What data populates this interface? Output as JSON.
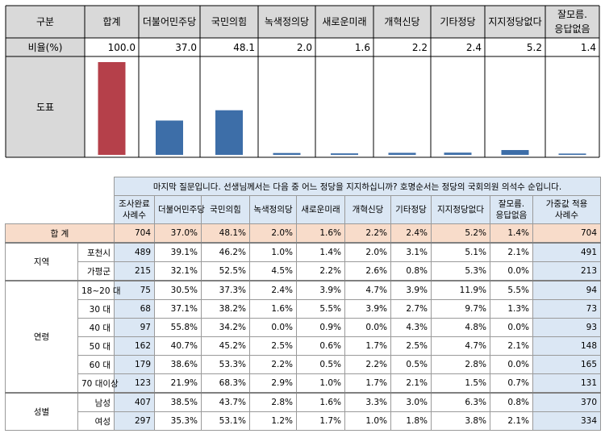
{
  "top_table": {
    "header_label": "구분",
    "rate_label": "비율(%)",
    "chart_label": "도표",
    "columns": [
      "합계",
      "더불어민주당",
      "국민의힘",
      "녹색정의당",
      "새로운미래",
      "개혁신당",
      "기타정당",
      "지지정당없다",
      "잘모름.\n응답없음"
    ],
    "rates": [
      "100.0",
      "37.0",
      "48.1",
      "2.0",
      "1.6",
      "2.2",
      "2.4",
      "5.2",
      "1.4"
    ]
  },
  "chart_data": {
    "type": "bar",
    "categories": [
      "합계",
      "더불어민주당",
      "국민의힘",
      "녹색정의당",
      "새로운미래",
      "개혁신당",
      "기타정당",
      "지지정당없다",
      "잘모름.\n응답없음"
    ],
    "values": [
      100.0,
      37.0,
      48.1,
      2.0,
      1.6,
      2.2,
      2.4,
      5.2,
      1.4
    ],
    "ylim": [
      0,
      100
    ],
    "colors": [
      "#b5404a",
      "#3d6ea8",
      "#3d6ea8",
      "#3d6ea8",
      "#3d6ea8",
      "#3d6ea8",
      "#3d6ea8",
      "#3d6ea8",
      "#3d6ea8"
    ],
    "title": "",
    "xlabel": "",
    "ylabel": ""
  },
  "survey": {
    "question": "마지막 질문입니다. 선생님께서는 다음 중 어느 정당을 지지하십니까? 호명순서는 정당의 국회의원 의석수 순입니다.",
    "headers": [
      "조사완료\n사례수",
      "더불어민주당",
      "국민의힘",
      "녹색정의당",
      "새로운미래",
      "개혁신당",
      "기타정당",
      "지지정당없다",
      "잘모름.\n응답없음",
      "가중값 적용\n사례수"
    ],
    "total": {
      "label": "합 계",
      "values": [
        "704",
        "37.0%",
        "48.1%",
        "2.0%",
        "1.6%",
        "2.2%",
        "2.4%",
        "5.2%",
        "1.4%",
        "704"
      ]
    },
    "groups": [
      {
        "name": "지역",
        "rows": [
          {
            "label": "포천시",
            "values": [
              "489",
              "39.1%",
              "46.2%",
              "1.0%",
              "1.4%",
              "2.0%",
              "3.1%",
              "5.1%",
              "2.1%",
              "491"
            ]
          },
          {
            "label": "가평군",
            "values": [
              "215",
              "32.1%",
              "52.5%",
              "4.5%",
              "2.2%",
              "2.6%",
              "0.8%",
              "5.3%",
              "0.0%",
              "213"
            ]
          }
        ]
      },
      {
        "name": "연령",
        "rows": [
          {
            "label": "18~20 대",
            "values": [
              "75",
              "30.5%",
              "37.3%",
              "2.4%",
              "3.9%",
              "4.7%",
              "3.9%",
              "11.9%",
              "5.5%",
              "94"
            ]
          },
          {
            "label": "30 대",
            "values": [
              "68",
              "37.1%",
              "38.2%",
              "1.6%",
              "5.5%",
              "3.9%",
              "2.7%",
              "9.7%",
              "1.3%",
              "73"
            ]
          },
          {
            "label": "40 대",
            "values": [
              "97",
              "55.8%",
              "34.2%",
              "0.0%",
              "0.9%",
              "0.0%",
              "4.3%",
              "4.8%",
              "0.0%",
              "93"
            ]
          },
          {
            "label": "50 대",
            "values": [
              "162",
              "40.7%",
              "45.2%",
              "2.5%",
              "0.6%",
              "1.7%",
              "2.5%",
              "4.7%",
              "2.1%",
              "148"
            ]
          },
          {
            "label": "60 대",
            "values": [
              "179",
              "38.6%",
              "53.3%",
              "2.2%",
              "0.5%",
              "2.2%",
              "0.5%",
              "2.8%",
              "0.0%",
              "165"
            ]
          },
          {
            "label": "70 대이상",
            "values": [
              "123",
              "21.9%",
              "68.3%",
              "2.9%",
              "1.0%",
              "1.7%",
              "2.1%",
              "1.5%",
              "0.7%",
              "131"
            ]
          }
        ]
      },
      {
        "name": "성별",
        "rows": [
          {
            "label": "남성",
            "values": [
              "407",
              "38.5%",
              "43.7%",
              "2.8%",
              "1.6%",
              "3.3%",
              "3.0%",
              "6.3%",
              "0.8%",
              "370"
            ]
          },
          {
            "label": "여성",
            "values": [
              "297",
              "35.3%",
              "53.1%",
              "1.2%",
              "1.7%",
              "1.0%",
              "1.8%",
              "3.8%",
              "2.1%",
              "334"
            ]
          }
        ]
      }
    ]
  }
}
